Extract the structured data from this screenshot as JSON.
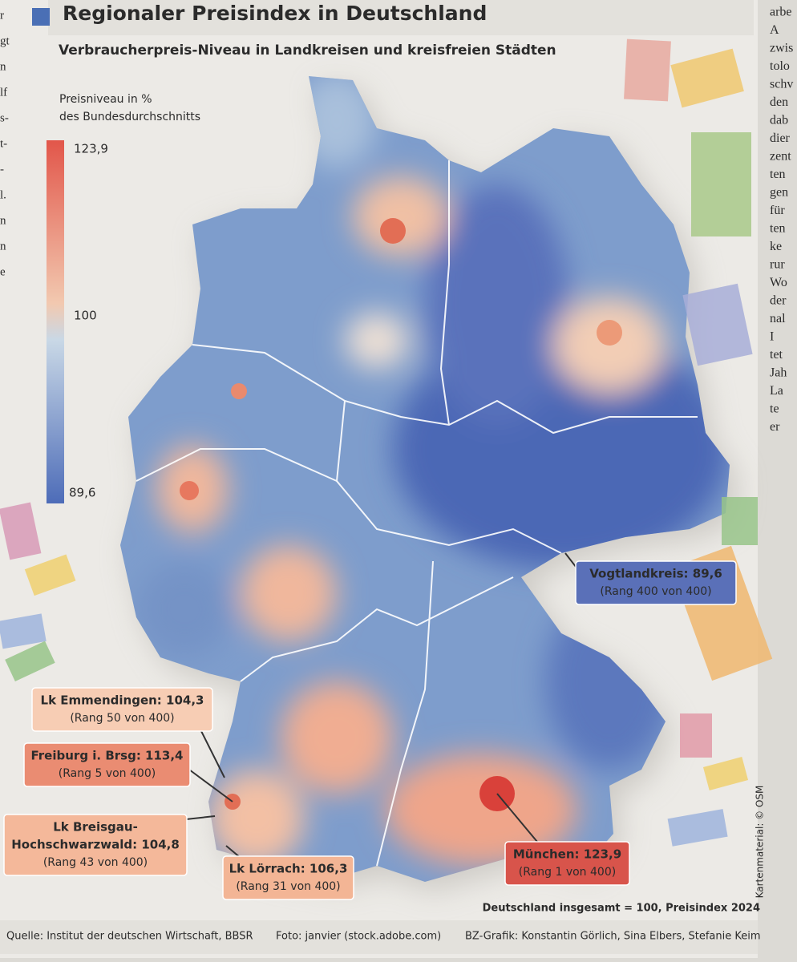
{
  "header": {
    "title": "Regionaler Preisindex in Deutschland",
    "subtitle": "Verbraucherpreis-Niveau in Landkreisen und kreisfreien Städten"
  },
  "legend": {
    "title_lines": [
      "Preisniveau in %",
      "des Bundesdurchschnitts"
    ],
    "max": "123,9",
    "mid": "100",
    "min": "89,6"
  },
  "callouts": [
    {
      "lines": [
        "Vogtlandkreis: 89,6"
      ],
      "rank": "(Rang 400 von 400)"
    },
    {
      "lines": [
        "Lk Emmendingen: 104,3"
      ],
      "rank": "(Rang 50 von 400)"
    },
    {
      "lines": [
        "Freiburg i. Brsg: 113,4"
      ],
      "rank": "(Rang 5 von 400)"
    },
    {
      "lines": [
        "Lk Breisgau-",
        "Hochschwarzwald: 104,8"
      ],
      "rank": "(Rang 43 von 400)"
    },
    {
      "lines": [
        "Lk Lörrach: 106,3"
      ],
      "rank": "(Rang 31 von 400)"
    },
    {
      "lines": [
        "München: 123,9"
      ],
      "rank": "(Rang 1 von 400)"
    }
  ],
  "note": "Deutschland insgesamt = 100, Preisindex 2024",
  "credit": "Kartenmaterial: © OSM",
  "footer": {
    "source": "Quelle: Institut der deutschen Wirtschaft, BBSR",
    "photo": "Foto: janvier (stock.adobe.com)",
    "graphic": "BZ-Grafik: Konstantin Görlich, Sina Elbers, Stefanie Keim"
  },
  "column_fragments": {
    "left": [
      "r",
      "gt",
      "n",
      "lf",
      "s-",
      "t-",
      "-",
      "l.",
      "n",
      "n",
      "e"
    ],
    "right": [
      "arbe",
      "A",
      "zwis",
      "tolo",
      "schv",
      "den",
      "dab",
      "dier",
      "zent",
      "ten",
      "gen",
      "für",
      "ten",
      "ke",
      "rur",
      "Wo",
      "der",
      "nal",
      "I",
      "tet",
      "Jah",
      "La",
      "te",
      "er"
    ]
  }
}
